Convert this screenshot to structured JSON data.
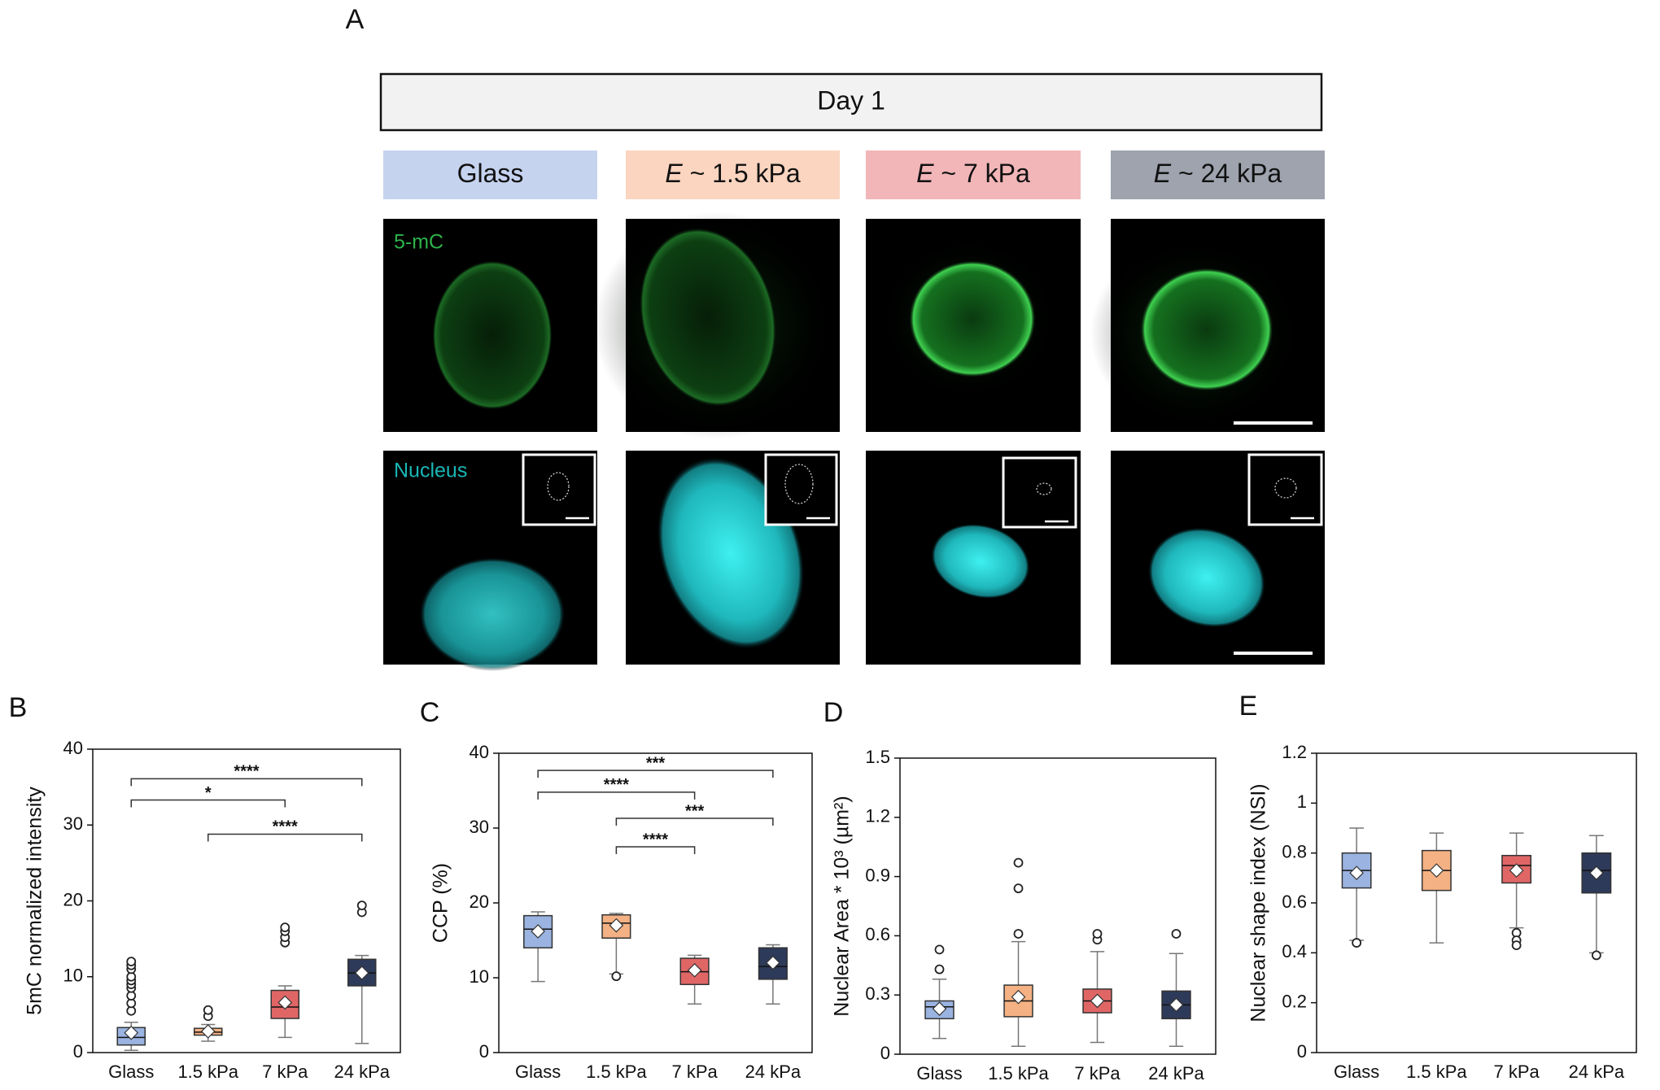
{
  "panel_a": {
    "label": "A",
    "header": "Day 1",
    "conditions": [
      {
        "text": "Glass",
        "color": "#c5d3ef"
      },
      {
        "symbol": "E",
        "text": "~ 1.5 kPa",
        "color": "#fbd5c0"
      },
      {
        "symbol": "E",
        "text": "~ 7 kPa",
        "color": "#f2b6b8"
      },
      {
        "symbol": "E",
        "text": "~ 24 kPa",
        "color": "#9ea3ae"
      }
    ],
    "channels": [
      "5-mC",
      "Nucleus"
    ]
  },
  "chart_data": [
    {
      "type": "box",
      "label": "B",
      "y_label": "5mC normalized intensity",
      "categories": [
        "Glass",
        "1.5 kPa",
        "7 kPa",
        "24 kPa"
      ],
      "ylim": [
        0,
        40
      ],
      "yticks": [
        0,
        10,
        20,
        30,
        40
      ],
      "boxes": [
        {
          "color": "#9ab3e0",
          "min": 0.3,
          "q1": 1,
          "median": 2,
          "q3": 3.3,
          "max": 4,
          "mean": 2.6,
          "outliers": [
            5.5,
            6.5,
            7.5,
            8.5,
            9,
            9.5,
            10,
            11,
            11.5,
            12
          ]
        },
        {
          "color": "#f4b183",
          "min": 1.5,
          "q1": 2.3,
          "median": 2.7,
          "q3": 3.2,
          "max": 3.7,
          "mean": 2.8,
          "outliers": [
            4.8,
            5.6
          ]
        },
        {
          "color": "#e06666",
          "min": 2,
          "q1": 4.5,
          "median": 6,
          "q3": 8.2,
          "max": 8.8,
          "mean": 6.6,
          "outliers": [
            14.5,
            15.2,
            16,
            16.5
          ]
        },
        {
          "color": "#2e3a59",
          "min": 1.2,
          "q1": 8.8,
          "median": 10.5,
          "q3": 12.3,
          "max": 12.8,
          "mean": 10.5,
          "outliers": [
            18.5,
            19.4
          ]
        }
      ],
      "significance": [
        {
          "from": 0,
          "to": 3,
          "y": 36.1,
          "label": "****"
        },
        {
          "from": 0,
          "to": 2,
          "y": 33.3,
          "label": "*"
        },
        {
          "from": 1,
          "to": 3,
          "y": 28.8,
          "label": "****"
        }
      ]
    },
    {
      "type": "box",
      "label": "C",
      "y_label": "CCP (%)",
      "categories": [
        "Glass",
        "1.5 kPa",
        "7 kPa",
        "24 kPa"
      ],
      "ylim": [
        0,
        40
      ],
      "yticks": [
        0,
        10,
        20,
        30,
        40
      ],
      "boxes": [
        {
          "color": "#9ab3e0",
          "min": 9.5,
          "q1": 14,
          "median": 16.5,
          "q3": 18.3,
          "max": 18.8,
          "mean": 16.2,
          "outliers": []
        },
        {
          "color": "#f4b183",
          "min": 10.5,
          "q1": 15.3,
          "median": 17.3,
          "q3": 18.4,
          "max": 18.6,
          "mean": 17,
          "outliers": [
            10.2
          ]
        },
        {
          "color": "#e06666",
          "min": 6.5,
          "q1": 9.1,
          "median": 10.8,
          "q3": 12.6,
          "max": 13,
          "mean": 11,
          "outliers": []
        },
        {
          "color": "#2e3a59",
          "min": 6.5,
          "q1": 9.8,
          "median": 11.5,
          "q3": 14,
          "max": 14.4,
          "mean": 12,
          "outliers": []
        }
      ],
      "significance": [
        {
          "from": 0,
          "to": 3,
          "y": 37.7,
          "label": "***"
        },
        {
          "from": 0,
          "to": 2,
          "y": 34.8,
          "label": "****"
        },
        {
          "from": 1,
          "to": 3,
          "y": 31.3,
          "label": "***"
        },
        {
          "from": 1,
          "to": 2,
          "y": 27.5,
          "label": "****"
        }
      ]
    },
    {
      "type": "box",
      "label": "D",
      "y_label": "Nuclear Area * 10³ (µm²)",
      "categories": [
        "Glass",
        "1.5 kPa",
        "7 kPa",
        "24 kPa"
      ],
      "ylim": [
        0,
        1.5
      ],
      "yticks": [
        0,
        0.3,
        0.6,
        0.9,
        1.2,
        1.5
      ],
      "boxes": [
        {
          "color": "#9ab3e0",
          "min": 0.08,
          "q1": 0.18,
          "median": 0.24,
          "q3": 0.27,
          "max": 0.38,
          "mean": 0.23,
          "outliers": [
            0.43,
            0.53
          ]
        },
        {
          "color": "#f4b183",
          "min": 0.04,
          "q1": 0.19,
          "median": 0.27,
          "q3": 0.35,
          "max": 0.57,
          "mean": 0.29,
          "outliers": [
            0.61,
            0.84,
            0.97
          ]
        },
        {
          "color": "#e06666",
          "min": 0.06,
          "q1": 0.21,
          "median": 0.27,
          "q3": 0.33,
          "max": 0.52,
          "mean": 0.27,
          "outliers": [
            0.58,
            0.61
          ]
        },
        {
          "color": "#2e3a59",
          "min": 0.04,
          "q1": 0.18,
          "median": 0.25,
          "q3": 0.32,
          "max": 0.51,
          "mean": 0.25,
          "outliers": [
            0.61
          ]
        }
      ],
      "significance": []
    },
    {
      "type": "box",
      "label": "E",
      "y_label": "Nuclear shape index (NSI)",
      "categories": [
        "Glass",
        "1.5 kPa",
        "7 kPa",
        "24 kPa"
      ],
      "ylim": [
        0,
        1.2
      ],
      "yticks": [
        0,
        0.2,
        0.4,
        0.6,
        0.8,
        1,
        1.2
      ],
      "boxes": [
        {
          "color": "#9ab3e0",
          "min": 0.45,
          "q1": 0.66,
          "median": 0.73,
          "q3": 0.8,
          "max": 0.9,
          "mean": 0.72,
          "outliers": [
            0.44
          ]
        },
        {
          "color": "#f4b183",
          "min": 0.44,
          "q1": 0.65,
          "median": 0.73,
          "q3": 0.81,
          "max": 0.88,
          "mean": 0.73,
          "outliers": []
        },
        {
          "color": "#e06666",
          "min": 0.5,
          "q1": 0.68,
          "median": 0.75,
          "q3": 0.79,
          "max": 0.88,
          "mean": 0.73,
          "outliers": [
            0.48,
            0.45,
            0.43
          ]
        },
        {
          "color": "#2e3a59",
          "min": 0.4,
          "q1": 0.64,
          "median": 0.73,
          "q3": 0.8,
          "max": 0.87,
          "mean": 0.72,
          "outliers": [
            0.39
          ]
        }
      ],
      "significance": []
    }
  ]
}
